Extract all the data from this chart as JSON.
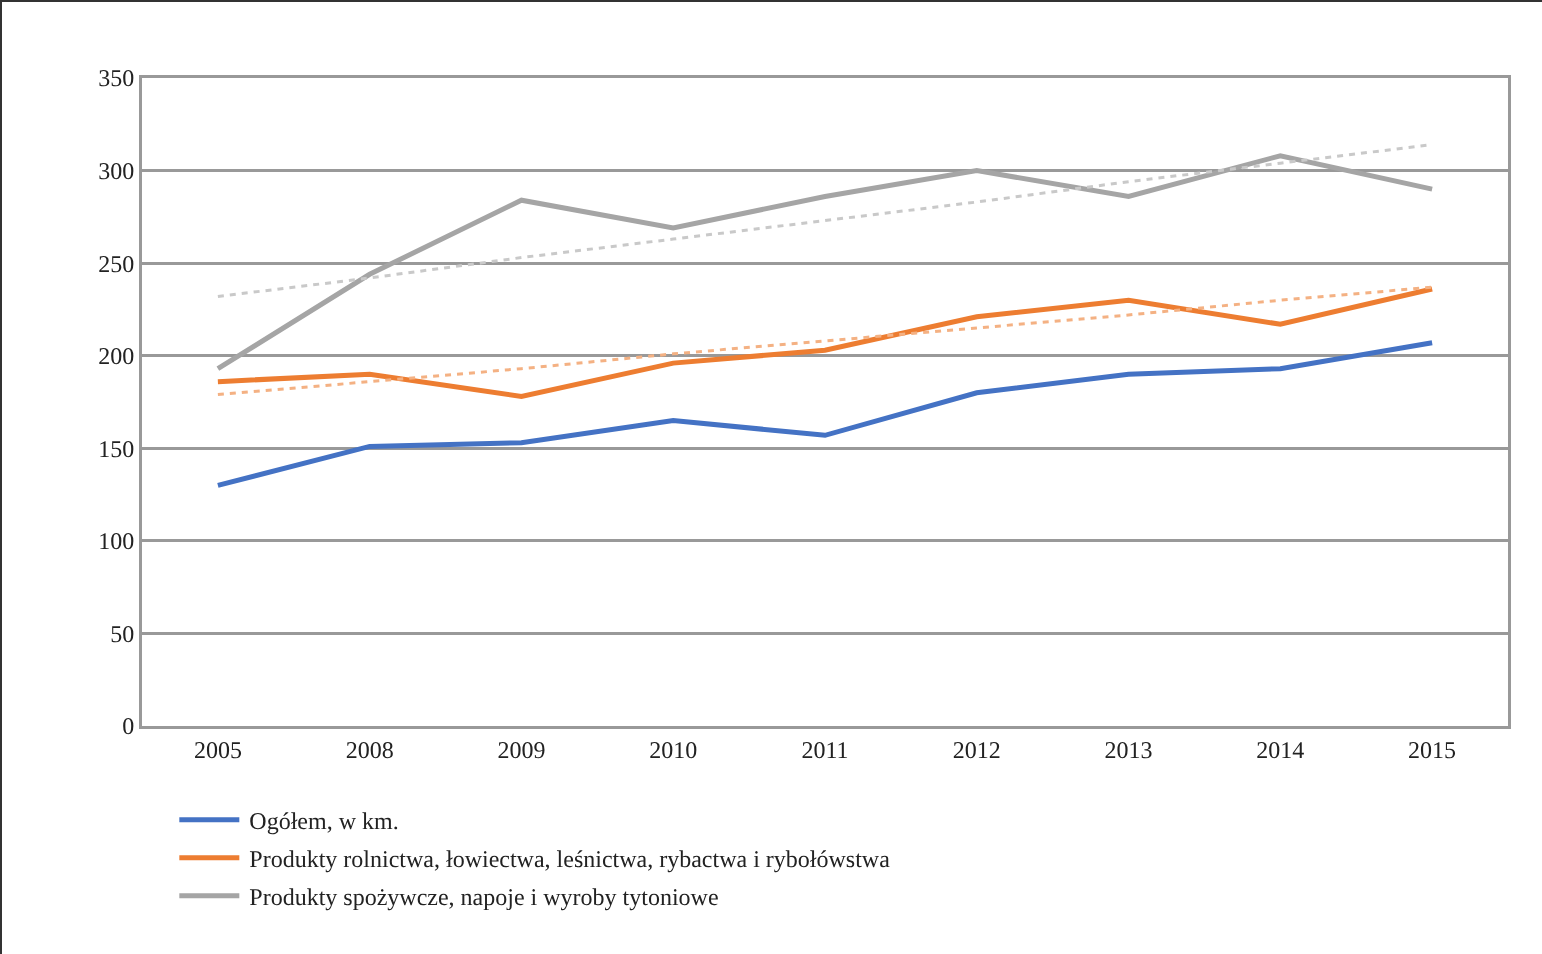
{
  "chart_data": {
    "type": "line",
    "categories": [
      "2005",
      "2008",
      "2009",
      "2010",
      "2011",
      "2012",
      "2013",
      "2014",
      "2015"
    ],
    "ylim": [
      0,
      350
    ],
    "yticks": [
      0,
      50,
      100,
      150,
      200,
      250,
      300,
      350
    ],
    "grid": "y",
    "legend": "bottom left",
    "marker": "none",
    "line_style": "solid",
    "series": [
      {
        "name": "Ogółem, w km.",
        "color": "#4472c4",
        "values": [
          130,
          151,
          153,
          165,
          157,
          180,
          190,
          193,
          207
        ]
      },
      {
        "name": "Produkty rolnictwa, łowiectwa, leśnictwa, rybactwa i rybołówstwa",
        "color": "#ed7d31",
        "values": [
          186,
          190,
          178,
          196,
          203,
          221,
          230,
          217,
          236
        ]
      },
      {
        "name": "Produkty spożywcze, napoje i wyroby tytoniowe",
        "color": "#a5a5a5",
        "values": [
          193,
          244,
          284,
          269,
          286,
          300,
          286,
          308,
          290
        ]
      },
      {
        "type": "line",
        "line_style": "dotted",
        "color": "#f4b183",
        "values": [
          179,
          186,
          193,
          201,
          208,
          215,
          222,
          230,
          237
        ]
      },
      {
        "type": "line",
        "line_style": "dotted",
        "color": "#c9c9c9",
        "values": [
          232,
          242,
          253,
          263,
          273,
          283,
          294,
          304,
          314
        ]
      }
    ]
  }
}
